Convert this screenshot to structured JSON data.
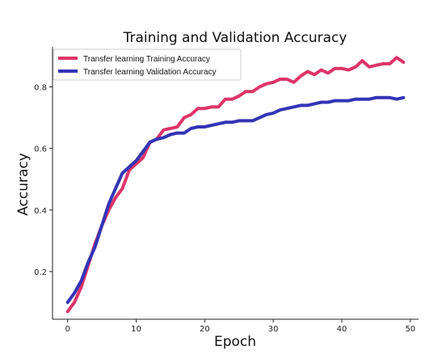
{
  "chart_data": {
    "type": "line",
    "title": "Training and Validation Accuracy",
    "xlabel": "Epoch",
    "ylabel": "Accuracy",
    "xlim": [
      -2.2,
      51.2
    ],
    "ylim": [
      0.045,
      0.93
    ],
    "xticks": [
      0,
      10,
      20,
      30,
      40,
      50
    ],
    "yticks": [
      0.2,
      0.4,
      0.6,
      0.8
    ],
    "ytick_labels": [
      "0.2",
      "0.4",
      "0.6",
      "0.8"
    ],
    "grid": false,
    "legend_position": "upper-left",
    "x": [
      0,
      1,
      2,
      3,
      4,
      5,
      6,
      7,
      8,
      9,
      10,
      11,
      12,
      13,
      14,
      15,
      16,
      17,
      18,
      19,
      20,
      21,
      22,
      23,
      24,
      25,
      26,
      27,
      28,
      29,
      30,
      31,
      32,
      33,
      34,
      35,
      36,
      37,
      38,
      39,
      40,
      41,
      42,
      43,
      44,
      45,
      46,
      47,
      48,
      49
    ],
    "series": [
      {
        "name": "Transfer learning Training Accuracy",
        "color": "#dd3568",
        "values": [
          0.07,
          0.1,
          0.15,
          0.22,
          0.29,
          0.35,
          0.4,
          0.44,
          0.47,
          0.53,
          0.55,
          0.57,
          0.62,
          0.63,
          0.66,
          0.665,
          0.67,
          0.7,
          0.71,
          0.73,
          0.73,
          0.735,
          0.735,
          0.76,
          0.76,
          0.77,
          0.785,
          0.785,
          0.8,
          0.81,
          0.815,
          0.825,
          0.825,
          0.815,
          0.835,
          0.85,
          0.84,
          0.855,
          0.845,
          0.86,
          0.86,
          0.855,
          0.865,
          0.885,
          0.865,
          0.87,
          0.875,
          0.875,
          0.895,
          0.88
        ]
      },
      {
        "name": "Transfer learning Validation Accuracy",
        "color": "#3333b5",
        "values": [
          0.1,
          0.13,
          0.17,
          0.23,
          0.28,
          0.35,
          0.42,
          0.47,
          0.52,
          0.54,
          0.56,
          0.59,
          0.62,
          0.63,
          0.635,
          0.645,
          0.65,
          0.65,
          0.665,
          0.67,
          0.67,
          0.675,
          0.68,
          0.685,
          0.685,
          0.69,
          0.69,
          0.69,
          0.7,
          0.71,
          0.715,
          0.725,
          0.73,
          0.735,
          0.74,
          0.74,
          0.745,
          0.75,
          0.75,
          0.755,
          0.755,
          0.755,
          0.76,
          0.76,
          0.76,
          0.765,
          0.765,
          0.765,
          0.76,
          0.765
        ]
      }
    ]
  }
}
